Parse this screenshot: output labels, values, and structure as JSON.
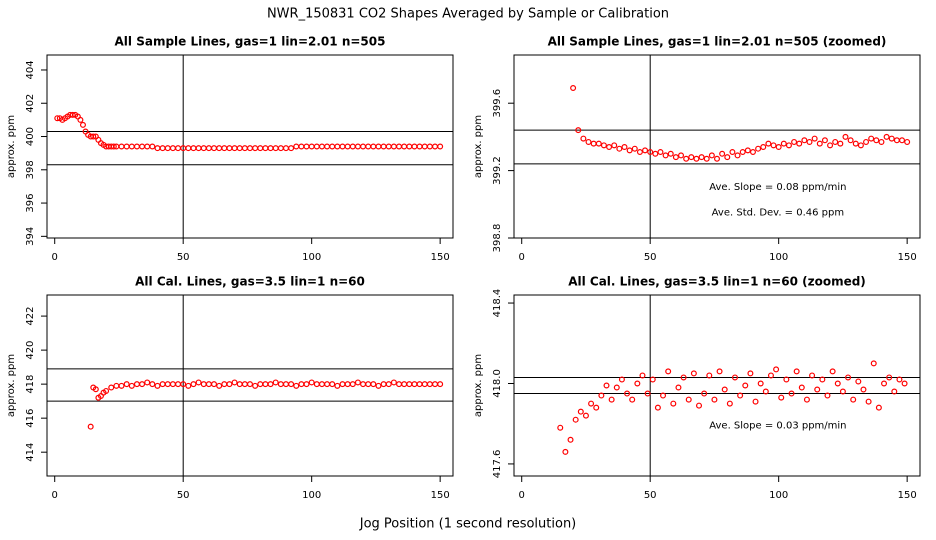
{
  "title": "NWR_150831  CO2 Shapes Averaged by Sample or Calibration",
  "xlabel": "Jog Position (1 second resolution)",
  "chart_data": [
    {
      "type": "scatter",
      "title": "All Sample Lines, gas=1 lin=2.01 n=505",
      "ylabel": "approx. ppm",
      "color": "#ff0000",
      "xlim": [
        -3,
        155
      ],
      "ylim": [
        393.9,
        404.9
      ],
      "xticks": [
        0,
        50,
        100,
        150
      ],
      "yticks": [
        394,
        396,
        398,
        400,
        402,
        404
      ],
      "hlines": [
        400.3,
        398.3
      ],
      "vlines": [
        50
      ],
      "x": [
        1,
        2,
        3,
        4,
        5,
        6,
        7,
        8,
        9,
        10,
        11,
        12,
        13,
        14,
        15,
        16,
        17,
        18,
        19,
        20,
        21,
        22,
        23,
        24,
        26,
        28,
        30,
        32,
        34,
        36,
        38,
        40,
        42,
        44,
        46,
        48,
        50,
        52,
        54,
        56,
        58,
        60,
        62,
        64,
        66,
        68,
        70,
        72,
        74,
        76,
        78,
        80,
        82,
        84,
        86,
        88,
        90,
        92,
        94,
        96,
        98,
        100,
        102,
        104,
        106,
        108,
        110,
        112,
        114,
        116,
        118,
        120,
        122,
        124,
        126,
        128,
        130,
        132,
        134,
        136,
        138,
        140,
        142,
        144,
        146,
        148,
        150
      ],
      "values": [
        401.1,
        401.1,
        401.0,
        401.1,
        401.2,
        401.3,
        401.3,
        401.3,
        401.2,
        401.0,
        400.7,
        400.3,
        400.1,
        400.0,
        400.0,
        400.0,
        399.8,
        399.6,
        399.5,
        399.4,
        399.4,
        399.4,
        399.4,
        399.4,
        399.4,
        399.4,
        399.4,
        399.4,
        399.4,
        399.4,
        399.4,
        399.3,
        399.3,
        399.3,
        399.3,
        399.3,
        399.3,
        399.3,
        399.3,
        399.3,
        399.3,
        399.3,
        399.3,
        399.3,
        399.3,
        399.3,
        399.3,
        399.3,
        399.3,
        399.3,
        399.3,
        399.3,
        399.3,
        399.3,
        399.3,
        399.3,
        399.3,
        399.3,
        399.4,
        399.4,
        399.4,
        399.4,
        399.4,
        399.4,
        399.4,
        399.4,
        399.4,
        399.4,
        399.4,
        399.4,
        399.4,
        399.4,
        399.4,
        399.4,
        399.4,
        399.4,
        399.4,
        399.4,
        399.4,
        399.4,
        399.4,
        399.4,
        399.4,
        399.4,
        399.4,
        399.4,
        399.4
      ],
      "annotations": []
    },
    {
      "type": "scatter",
      "title": "All Sample Lines, gas=1 lin=2.01 n=505 (zoomed)",
      "ylabel": "approx. ppm",
      "color": "#ff0000",
      "xlim": [
        -3,
        155
      ],
      "ylim": [
        398.8,
        399.886
      ],
      "xticks": [
        0,
        50,
        100,
        150
      ],
      "yticks": [
        398.8,
        399.2,
        399.6
      ],
      "hlines": [
        399.44,
        399.24
      ],
      "vlines": [
        50
      ],
      "x": [
        20,
        22,
        24,
        26,
        28,
        30,
        32,
        34,
        36,
        38,
        40,
        42,
        44,
        46,
        48,
        50,
        52,
        54,
        56,
        58,
        60,
        62,
        64,
        66,
        68,
        70,
        72,
        74,
        76,
        78,
        80,
        82,
        84,
        86,
        88,
        90,
        92,
        94,
        96,
        98,
        100,
        102,
        104,
        106,
        108,
        110,
        112,
        114,
        116,
        118,
        120,
        122,
        124,
        126,
        128,
        130,
        132,
        134,
        136,
        138,
        140,
        142,
        144,
        146,
        148,
        150
      ],
      "values": [
        399.69,
        399.44,
        399.39,
        399.37,
        399.36,
        399.36,
        399.35,
        399.34,
        399.35,
        399.33,
        399.34,
        399.32,
        399.33,
        399.31,
        399.32,
        399.31,
        399.3,
        399.31,
        399.29,
        399.3,
        399.28,
        399.29,
        399.27,
        399.28,
        399.27,
        399.28,
        399.27,
        399.29,
        399.27,
        399.3,
        399.28,
        399.31,
        399.29,
        399.31,
        399.32,
        399.31,
        399.33,
        399.34,
        399.36,
        399.35,
        399.34,
        399.36,
        399.35,
        399.37,
        399.36,
        399.38,
        399.37,
        399.39,
        399.36,
        399.38,
        399.35,
        399.37,
        399.36,
        399.4,
        399.38,
        399.36,
        399.35,
        399.37,
        399.39,
        399.38,
        399.37,
        399.4,
        399.39,
        399.38,
        399.38,
        399.37
      ],
      "annotations": [
        "Ave. Slope =  0.08  ppm/min",
        "Ave. Std. Dev. =  0.46  ppm"
      ]
    },
    {
      "type": "scatter",
      "title": "All Cal. Lines, gas=3.5 lin=1 n=60",
      "ylabel": "approx. ppm",
      "color": "#ff0000",
      "xlim": [
        -3,
        155
      ],
      "ylim": [
        412.6,
        423.24
      ],
      "xticks": [
        0,
        50,
        100,
        150
      ],
      "yticks": [
        414,
        416,
        418,
        420,
        422
      ],
      "hlines": [
        418.9,
        417.0
      ],
      "vlines": [
        50
      ],
      "x": [
        14,
        15,
        16,
        17,
        18,
        19,
        20,
        22,
        24,
        26,
        28,
        30,
        32,
        34,
        36,
        38,
        40,
        42,
        44,
        46,
        48,
        50,
        52,
        54,
        56,
        58,
        60,
        62,
        64,
        66,
        68,
        70,
        72,
        74,
        76,
        78,
        80,
        82,
        84,
        86,
        88,
        90,
        92,
        94,
        96,
        98,
        100,
        102,
        104,
        106,
        108,
        110,
        112,
        114,
        116,
        118,
        120,
        122,
        124,
        126,
        128,
        130,
        132,
        134,
        136,
        138,
        140,
        142,
        144,
        146,
        148,
        150
      ],
      "values": [
        415.5,
        417.8,
        417.7,
        417.2,
        417.3,
        417.5,
        417.6,
        417.8,
        417.9,
        417.9,
        418.0,
        417.9,
        418.0,
        418.0,
        418.1,
        418.0,
        417.9,
        418.0,
        418.0,
        418.0,
        418.0,
        418.0,
        417.9,
        418.0,
        418.1,
        418.0,
        418.0,
        418.0,
        417.9,
        418.0,
        418.0,
        418.1,
        418.0,
        418.0,
        418.0,
        417.9,
        418.0,
        418.0,
        418.0,
        418.1,
        418.0,
        418.0,
        418.0,
        417.9,
        418.0,
        418.0,
        418.1,
        418.0,
        418.0,
        418.0,
        418.0,
        417.9,
        418.0,
        418.0,
        418.0,
        418.1,
        418.0,
        418.0,
        418.0,
        417.9,
        418.0,
        418.0,
        418.1,
        418.0,
        418.0,
        418.0,
        418.0,
        418.0,
        418.0,
        418.0,
        418.0,
        418.0
      ],
      "annotations": []
    },
    {
      "type": "scatter",
      "title": "All Cal. Lines, gas=3.5 lin=1 n=60 (zoomed)",
      "ylabel": "approx. ppm",
      "color": "#ff0000",
      "xlim": [
        -3,
        155
      ],
      "ylim": [
        417.54,
        418.44
      ],
      "xticks": [
        0,
        50,
        100,
        150
      ],
      "yticks": [
        417.6,
        {
          "value": 418,
          "label": "418.0"
        },
        418.4
      ],
      "hlines": [
        418.03,
        417.95
      ],
      "vlines": [
        50
      ],
      "x": [
        15,
        17,
        19,
        21,
        23,
        25,
        27,
        29,
        31,
        33,
        35,
        37,
        39,
        41,
        43,
        45,
        47,
        49,
        51,
        53,
        55,
        57,
        59,
        61,
        63,
        65,
        67,
        69,
        71,
        73,
        75,
        77,
        79,
        81,
        83,
        85,
        87,
        89,
        91,
        93,
        95,
        97,
        99,
        101,
        103,
        105,
        107,
        109,
        111,
        113,
        115,
        117,
        119,
        121,
        123,
        125,
        127,
        129,
        131,
        133,
        135,
        137,
        139,
        141,
        143,
        145,
        147,
        149
      ],
      "values": [
        417.78,
        417.66,
        417.72,
        417.82,
        417.86,
        417.84,
        417.9,
        417.88,
        417.94,
        417.99,
        417.92,
        417.98,
        418.02,
        417.95,
        417.92,
        418.0,
        418.04,
        417.95,
        418.02,
        417.88,
        417.94,
        418.06,
        417.9,
        417.98,
        418.03,
        417.92,
        418.05,
        417.89,
        417.95,
        418.04,
        417.92,
        418.06,
        417.97,
        417.9,
        418.03,
        417.94,
        417.99,
        418.05,
        417.91,
        418.0,
        417.96,
        418.04,
        418.07,
        417.93,
        418.02,
        417.95,
        418.06,
        417.98,
        417.92,
        418.04,
        417.97,
        418.02,
        417.94,
        418.06,
        418.0,
        417.96,
        418.03,
        417.92,
        418.01,
        417.97,
        417.91,
        418.1,
        417.88,
        418.0,
        418.03,
        417.96,
        418.02,
        418.0
      ],
      "annotations": [
        "Ave. Slope =  0.03  ppm/min"
      ]
    }
  ]
}
